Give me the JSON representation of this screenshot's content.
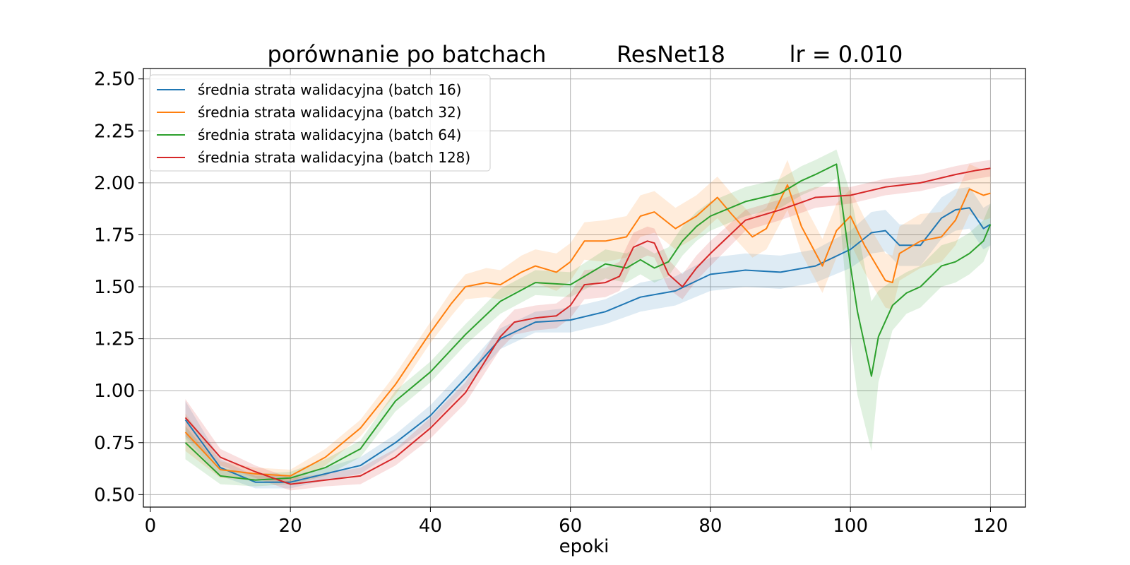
{
  "chart_data": {
    "type": "line",
    "title_parts": [
      "porównanie po batchach",
      "ResNet18",
      "lr = 0.010"
    ],
    "xlabel": "epoki",
    "ylabel": "",
    "xlim": [
      -1,
      125
    ],
    "ylim": [
      0.44,
      2.55
    ],
    "xticks": [
      0,
      20,
      40,
      60,
      80,
      100,
      120
    ],
    "yticks": [
      0.5,
      0.75,
      1.0,
      1.25,
      1.5,
      1.75,
      2.0,
      2.25,
      2.5
    ],
    "ytick_labels": [
      "0.50",
      "0.75",
      "1.00",
      "1.25",
      "1.50",
      "1.75",
      "2.00",
      "2.25",
      "2.50"
    ],
    "grid": true,
    "legend_position": "top-left",
    "series": [
      {
        "name": "średnia strata walidacyjna (batch 16)",
        "color": "#1f77b4",
        "x": [
          5,
          10,
          15,
          20,
          25,
          30,
          35,
          40,
          45,
          50,
          55,
          60,
          65,
          70,
          75,
          80,
          85,
          90,
          95,
          100,
          103,
          105,
          107,
          110,
          113,
          115,
          117,
          119,
          120
        ],
        "y": [
          0.86,
          0.63,
          0.56,
          0.56,
          0.6,
          0.64,
          0.75,
          0.88,
          1.06,
          1.25,
          1.33,
          1.34,
          1.38,
          1.45,
          1.48,
          1.56,
          1.58,
          1.57,
          1.6,
          1.68,
          1.76,
          1.77,
          1.7,
          1.7,
          1.83,
          1.87,
          1.88,
          1.78,
          1.8
        ],
        "band": [
          0.09,
          0.04,
          0.03,
          0.03,
          0.03,
          0.04,
          0.04,
          0.05,
          0.05,
          0.05,
          0.05,
          0.06,
          0.06,
          0.07,
          0.07,
          0.08,
          0.08,
          0.08,
          0.08,
          0.09,
          0.1,
          0.1,
          0.1,
          0.1,
          0.1,
          0.1,
          0.1,
          0.1,
          0.1
        ]
      },
      {
        "name": "średnia strata walidacyjna (batch 32)",
        "color": "#ff7f0e",
        "x": [
          5,
          10,
          15,
          20,
          25,
          30,
          35,
          40,
          43,
          45,
          48,
          50,
          53,
          55,
          58,
          60,
          62,
          65,
          68,
          70,
          72,
          75,
          78,
          81,
          83,
          86,
          88,
          91,
          93,
          96,
          98,
          100,
          102,
          105,
          106,
          107,
          110,
          113,
          115,
          117,
          119,
          120
        ],
        "y": [
          0.8,
          0.62,
          0.6,
          0.59,
          0.68,
          0.82,
          1.03,
          1.28,
          1.42,
          1.5,
          1.52,
          1.51,
          1.57,
          1.6,
          1.57,
          1.62,
          1.72,
          1.72,
          1.74,
          1.84,
          1.86,
          1.78,
          1.84,
          1.93,
          1.85,
          1.74,
          1.78,
          1.99,
          1.79,
          1.6,
          1.77,
          1.84,
          1.7,
          1.53,
          1.52,
          1.66,
          1.72,
          1.74,
          1.82,
          1.97,
          1.94,
          1.95
        ],
        "band": [
          0.09,
          0.04,
          0.03,
          0.03,
          0.04,
          0.04,
          0.05,
          0.05,
          0.06,
          0.06,
          0.07,
          0.07,
          0.08,
          0.08,
          0.09,
          0.09,
          0.09,
          0.1,
          0.1,
          0.1,
          0.1,
          0.1,
          0.1,
          0.1,
          0.1,
          0.1,
          0.1,
          0.12,
          0.13,
          0.13,
          0.13,
          0.13,
          0.13,
          0.13,
          0.13,
          0.13,
          0.13,
          0.12,
          0.12,
          0.12,
          0.12,
          0.12
        ]
      },
      {
        "name": "średnia strata walidacyjna (batch 64)",
        "color": "#2ca02c",
        "x": [
          5,
          10,
          15,
          20,
          25,
          30,
          35,
          40,
          45,
          50,
          55,
          60,
          65,
          68,
          70,
          72,
          74,
          76,
          78,
          80,
          85,
          90,
          93,
          95,
          98,
          100,
          101,
          103,
          104,
          106,
          108,
          110,
          113,
          115,
          117,
          119,
          120
        ],
        "y": [
          0.75,
          0.59,
          0.57,
          0.58,
          0.63,
          0.72,
          0.95,
          1.09,
          1.27,
          1.43,
          1.52,
          1.51,
          1.61,
          1.59,
          1.63,
          1.59,
          1.62,
          1.72,
          1.79,
          1.84,
          1.91,
          1.95,
          2.01,
          2.04,
          2.09,
          1.6,
          1.38,
          1.07,
          1.26,
          1.41,
          1.47,
          1.5,
          1.6,
          1.62,
          1.66,
          1.72,
          1.8
        ],
        "band": [
          0.08,
          0.04,
          0.03,
          0.03,
          0.04,
          0.04,
          0.05,
          0.05,
          0.05,
          0.06,
          0.06,
          0.06,
          0.07,
          0.07,
          0.07,
          0.07,
          0.07,
          0.07,
          0.07,
          0.07,
          0.07,
          0.07,
          0.07,
          0.07,
          0.07,
          0.35,
          0.4,
          0.36,
          0.22,
          0.12,
          0.1,
          0.1,
          0.1,
          0.1,
          0.1,
          0.1,
          0.1
        ]
      },
      {
        "name": "średnia strata walidacyjna (batch 128)",
        "color": "#d62728",
        "x": [
          5,
          10,
          15,
          20,
          25,
          30,
          35,
          40,
          45,
          50,
          52,
          55,
          58,
          60,
          62,
          65,
          67,
          69,
          71,
          72,
          74,
          76,
          78,
          80,
          85,
          90,
          95,
          100,
          105,
          110,
          115,
          118,
          120
        ],
        "y": [
          0.87,
          0.68,
          0.61,
          0.55,
          0.57,
          0.59,
          0.68,
          0.82,
          0.99,
          1.26,
          1.33,
          1.35,
          1.36,
          1.41,
          1.51,
          1.52,
          1.55,
          1.69,
          1.72,
          1.71,
          1.56,
          1.5,
          1.59,
          1.66,
          1.82,
          1.87,
          1.93,
          1.94,
          1.98,
          2.0,
          2.04,
          2.06,
          2.07
        ],
        "band": [
          0.09,
          0.04,
          0.03,
          0.03,
          0.03,
          0.04,
          0.04,
          0.05,
          0.05,
          0.06,
          0.06,
          0.06,
          0.06,
          0.06,
          0.07,
          0.07,
          0.07,
          0.07,
          0.07,
          0.07,
          0.07,
          0.06,
          0.06,
          0.06,
          0.05,
          0.05,
          0.05,
          0.04,
          0.04,
          0.04,
          0.04,
          0.04,
          0.04
        ]
      }
    ]
  }
}
